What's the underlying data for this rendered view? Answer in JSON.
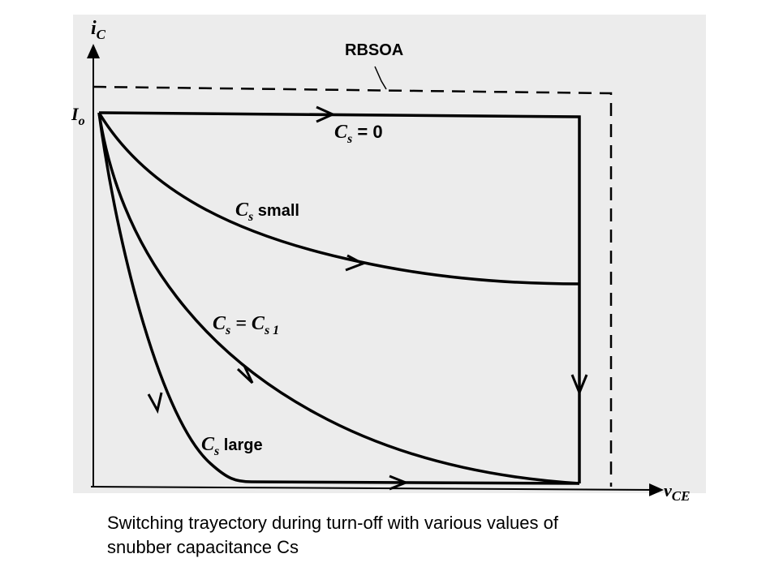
{
  "diagram": {
    "y_axis_label": "i",
    "y_axis_sub": "C",
    "x_axis_label": "v",
    "x_axis_sub": "CE",
    "io_label": "I",
    "io_sub": "o",
    "rbsoa_label": "RBSOA",
    "curves": [
      {
        "main": "C",
        "sub": "s",
        "rest": " = 0"
      },
      {
        "main": "C",
        "sub": "s",
        "rest": " small"
      },
      {
        "main": "C",
        "sub": "s",
        "rest": " = C",
        "rest_sub": "s 1"
      },
      {
        "main": "C",
        "sub": "s",
        "rest": " large"
      }
    ]
  },
  "caption": {
    "line1": "Switching trayectory during turn-off with various values of",
    "line2": "snubber capacitance Cs"
  }
}
